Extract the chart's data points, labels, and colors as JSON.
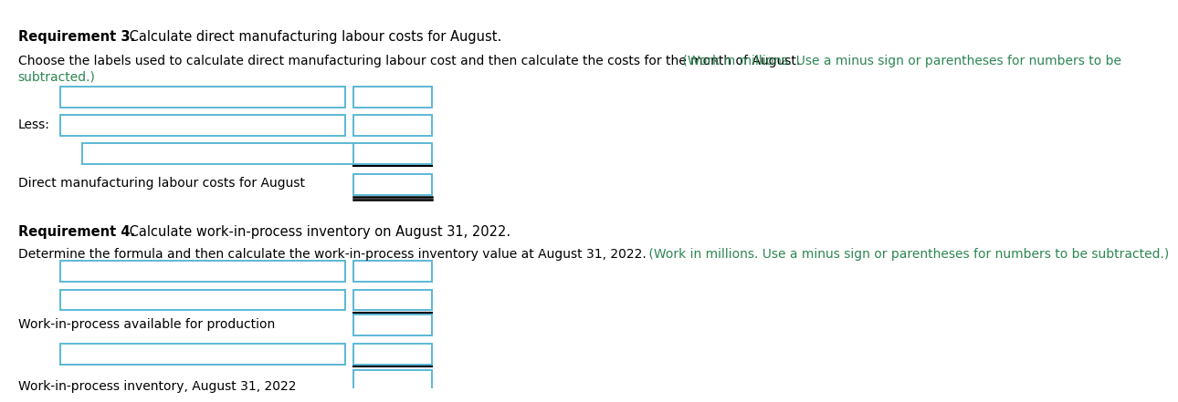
{
  "bg_color": "#ffffff",
  "req3_title_bold": "Requirement 3.",
  "req3_title_normal": " Calculate direct manufacturing labour costs for August.",
  "req3_instr_black": "Choose the labels used to calculate direct manufacturing labour cost and then calculate the costs for the month of August.",
  "req3_instr_green_line1": " (Work in millions. Use a minus sign or parentheses for numbers to be",
  "req3_instr_green_line2": "subtracted.)",
  "less_label": "Less:",
  "req3_result_label": "Direct manufacturing labour costs for August",
  "req4_title_bold": "Requirement 4.",
  "req4_title_normal": " Calculate work-in-process inventory on August 31, 2022.",
  "req4_instr_black": "Determine the formula and then calculate the work-in-process inventory value at August 31, 2022.",
  "req4_instr_green": " (Work in millions. Use a minus sign or parentheses for numbers to be subtracted.)",
  "req4_mid_label": "Work-in-process available for production",
  "req4_result_label": "Work-in-process inventory, August 31, 2022",
  "box_color": "#5bb8d4",
  "text_black": "#000000",
  "text_green": "#2d8653",
  "font_size_title": 10.5,
  "font_size_body": 10.0
}
